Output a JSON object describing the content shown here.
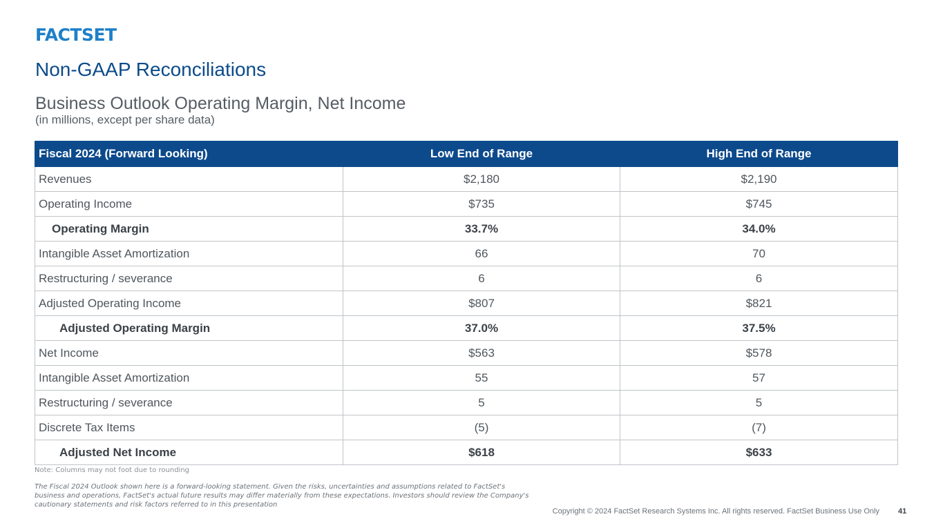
{
  "logo": "FACTSET",
  "title": "Non-GAAP Reconciliations",
  "subtitle": "Business Outlook Operating Margin, Net Income",
  "units": "(in millions, except per share data)",
  "table": {
    "headers": [
      "Fiscal 2024 (Forward Looking)",
      "Low End of Range",
      "High End of Range"
    ],
    "rows": [
      {
        "label": "Revenues",
        "low": "$2,180",
        "high": "$2,190"
      },
      {
        "label": "Operating Income",
        "low": "$735",
        "high": "$745"
      },
      {
        "label": "Operating Margin",
        "low": "33.7%",
        "high": "34.0%"
      },
      {
        "label": "Intangible Asset Amortization",
        "low": "66",
        "high": "70"
      },
      {
        "label": "Restructuring / severance",
        "low": "6",
        "high": "6"
      },
      {
        "label": "Adjusted Operating Income",
        "low": "$807",
        "high": "$821"
      },
      {
        "label": "Adjusted Operating Margin",
        "low": "37.0%",
        "high": "37.5%"
      },
      {
        "label": "Net Income",
        "low": "$563",
        "high": "$578"
      },
      {
        "label": "Intangible Asset Amortization",
        "low": "55",
        "high": "57"
      },
      {
        "label": "Restructuring / severance",
        "low": "5",
        "high": "5"
      },
      {
        "label": "Discrete Tax Items",
        "low": "(5)",
        "high": "(7)"
      },
      {
        "label": "Adjusted Net Income",
        "low": "$618",
        "high": "$633"
      }
    ]
  },
  "note": "Note: Columns may not foot due to rounding",
  "disclaimer": "The Fiscal 2024 Outlook shown here is a forward-looking statement. Given the risks, uncertainties and assumptions related to FactSet's business and operations, FactSet's actual future results may differ materially from these expectations. Investors should review the Company's cautionary statements and risk factors referred to in this presentation",
  "footer": {
    "copyright": "Copyright © 2024 FactSet Research Systems Inc. All rights reserved. FactSet Business Use Only",
    "page_number": "41"
  },
  "colors": {
    "brand_blue": "#1e80c8",
    "header_navy": "#0d4a8c",
    "title_blue": "#0b4b8a"
  }
}
